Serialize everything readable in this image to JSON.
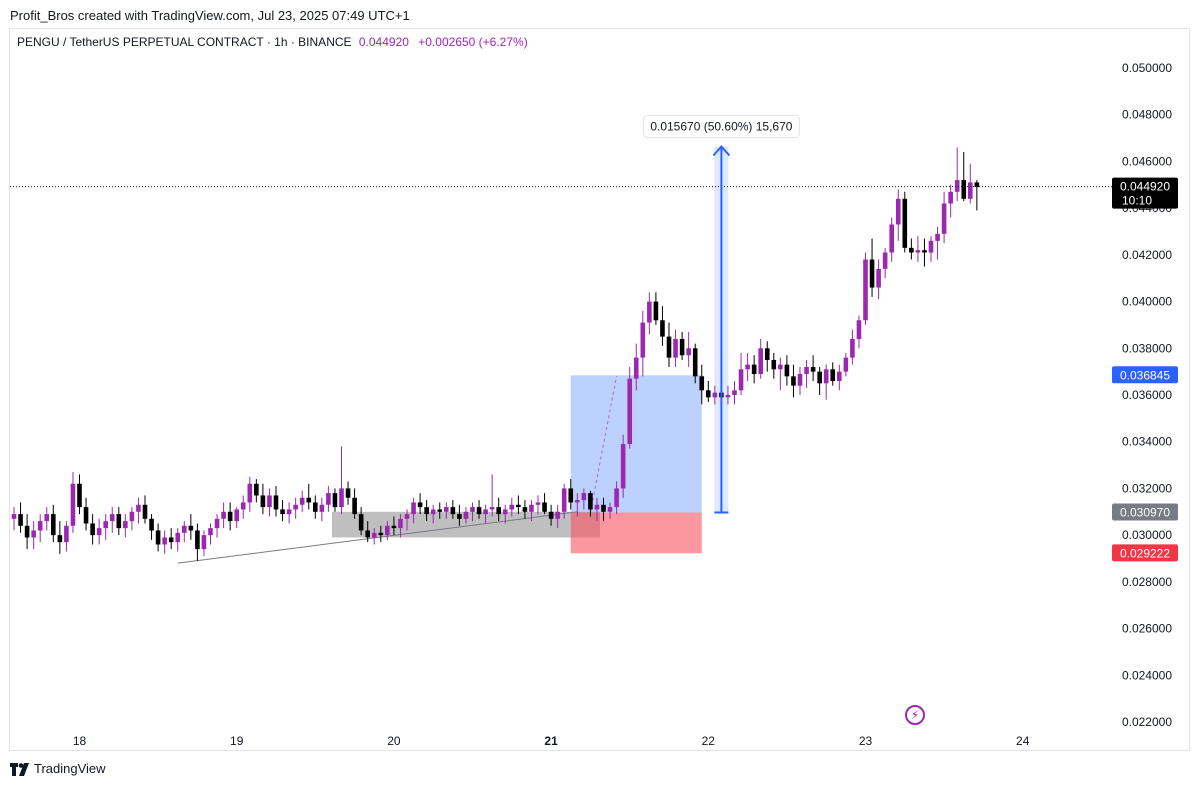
{
  "header": {
    "credit": "Profit_Bros created with TradingView.com, Jul 23, 2025 07:49 UTC+1"
  },
  "legend": {
    "symbol": "PENGU / TetherUS PERPETUAL CONTRACT · 1h · BINANCE",
    "price": "0.044920",
    "change": "+0.002650 (+6.27%)"
  },
  "footer": {
    "brand": "TradingView"
  },
  "icons": {
    "bolt": "lightning-icon",
    "logo": "tradingview-logo-icon"
  },
  "colors": {
    "up": "#9c27b0",
    "down": "#000000",
    "entry_badge": "#2962ff",
    "stop_badge": "#f23645",
    "target_badge": "#787b86",
    "last_badge": "#000000"
  },
  "chart_data": {
    "type": "candlestick",
    "ylim": [
      0.022,
      0.0515
    ],
    "y_ticks": [
      "0.050000",
      "0.048000",
      "0.046000",
      "0.044000",
      "0.042000",
      "0.040000",
      "0.038000",
      "0.036000",
      "0.034000",
      "0.032000",
      "0.030000",
      "0.028000",
      "0.026000",
      "0.024000",
      "0.022000"
    ],
    "x_ticks": [
      "18",
      "19",
      "20",
      "21",
      "22",
      "23",
      "24"
    ],
    "x_ticks_bold": [
      "21"
    ],
    "candles": [
      [
        0.0307,
        0.0312,
        0.0302,
        0.0309
      ],
      [
        0.0309,
        0.0314,
        0.0301,
        0.0304
      ],
      [
        0.0304,
        0.0309,
        0.0294,
        0.0299
      ],
      [
        0.0299,
        0.0306,
        0.0294,
        0.0302
      ],
      [
        0.0302,
        0.0309,
        0.0297,
        0.0306
      ],
      [
        0.0306,
        0.0312,
        0.0302,
        0.0309
      ],
      [
        0.0309,
        0.0313,
        0.0297,
        0.03
      ],
      [
        0.03,
        0.0306,
        0.0292,
        0.0297
      ],
      [
        0.0297,
        0.0306,
        0.0293,
        0.0304
      ],
      [
        0.0304,
        0.0327,
        0.0301,
        0.0322
      ],
      [
        0.0322,
        0.0326,
        0.0309,
        0.0312
      ],
      [
        0.0312,
        0.0316,
        0.0302,
        0.0305
      ],
      [
        0.0305,
        0.0309,
        0.0296,
        0.03
      ],
      [
        0.03,
        0.0307,
        0.0296,
        0.0303
      ],
      [
        0.0303,
        0.0309,
        0.0298,
        0.0306
      ],
      [
        0.0306,
        0.0312,
        0.0301,
        0.0309
      ],
      [
        0.0309,
        0.0312,
        0.03,
        0.0303
      ],
      [
        0.0303,
        0.0309,
        0.0299,
        0.0306
      ],
      [
        0.0306,
        0.0312,
        0.0302,
        0.031
      ],
      [
        0.031,
        0.0316,
        0.0305,
        0.0313
      ],
      [
        0.0313,
        0.0317,
        0.0305,
        0.0307
      ],
      [
        0.0307,
        0.0309,
        0.0298,
        0.0302
      ],
      [
        0.0302,
        0.0305,
        0.0293,
        0.0296
      ],
      [
        0.0296,
        0.0302,
        0.0292,
        0.0299
      ],
      [
        0.0299,
        0.0303,
        0.0294,
        0.0297
      ],
      [
        0.0297,
        0.0303,
        0.0293,
        0.0301
      ],
      [
        0.0301,
        0.0306,
        0.0297,
        0.0304
      ],
      [
        0.0304,
        0.0309,
        0.0298,
        0.0302
      ],
      [
        0.0302,
        0.0305,
        0.0289,
        0.0294
      ],
      [
        0.0294,
        0.0302,
        0.0291,
        0.03
      ],
      [
        0.03,
        0.0305,
        0.0296,
        0.0303
      ],
      [
        0.0303,
        0.0309,
        0.0299,
        0.0307
      ],
      [
        0.0307,
        0.0314,
        0.0303,
        0.031
      ],
      [
        0.031,
        0.0314,
        0.0302,
        0.0306
      ],
      [
        0.0306,
        0.0312,
        0.0303,
        0.0311
      ],
      [
        0.0311,
        0.0317,
        0.0307,
        0.0314
      ],
      [
        0.0314,
        0.0325,
        0.031,
        0.0322
      ],
      [
        0.0322,
        0.0324,
        0.0314,
        0.0317
      ],
      [
        0.0317,
        0.0322,
        0.0309,
        0.0312
      ],
      [
        0.0312,
        0.032,
        0.0308,
        0.0317
      ],
      [
        0.0317,
        0.0321,
        0.0308,
        0.0311
      ],
      [
        0.0311,
        0.0315,
        0.0306,
        0.0309
      ],
      [
        0.0309,
        0.0314,
        0.0305,
        0.0311
      ],
      [
        0.0311,
        0.0316,
        0.0307,
        0.0313
      ],
      [
        0.0313,
        0.0319,
        0.031,
        0.0316
      ],
      [
        0.0316,
        0.0322,
        0.0311,
        0.0314
      ],
      [
        0.0314,
        0.0317,
        0.0307,
        0.031
      ],
      [
        0.031,
        0.0316,
        0.0306,
        0.0313
      ],
      [
        0.0313,
        0.0321,
        0.031,
        0.0318
      ],
      [
        0.0318,
        0.032,
        0.031,
        0.0312
      ],
      [
        0.0312,
        0.0338,
        0.0309,
        0.032
      ],
      [
        0.032,
        0.0323,
        0.0313,
        0.0316
      ],
      [
        0.0316,
        0.032,
        0.0307,
        0.0309
      ],
      [
        0.0309,
        0.0312,
        0.03,
        0.0302
      ],
      [
        0.0302,
        0.0306,
        0.0297,
        0.0299
      ],
      [
        0.0299,
        0.0303,
        0.0296,
        0.0301
      ],
      [
        0.0301,
        0.0304,
        0.0297,
        0.03
      ],
      [
        0.03,
        0.0306,
        0.0298,
        0.0304
      ],
      [
        0.0304,
        0.0308,
        0.03,
        0.0303
      ],
      [
        0.0303,
        0.0309,
        0.0299,
        0.0307
      ],
      [
        0.0307,
        0.0311,
        0.0302,
        0.0309
      ],
      [
        0.0309,
        0.0316,
        0.0305,
        0.0314
      ],
      [
        0.0314,
        0.0318,
        0.0309,
        0.0312
      ],
      [
        0.0312,
        0.0315,
        0.0306,
        0.0309
      ],
      [
        0.0309,
        0.0313,
        0.0305,
        0.0311
      ],
      [
        0.0311,
        0.0314,
        0.0307,
        0.031
      ],
      [
        0.031,
        0.0314,
        0.0307,
        0.0312
      ],
      [
        0.0312,
        0.0315,
        0.0307,
        0.0309
      ],
      [
        0.0309,
        0.0313,
        0.0304,
        0.0307
      ],
      [
        0.0307,
        0.0312,
        0.0305,
        0.031
      ],
      [
        0.031,
        0.0314,
        0.0306,
        0.0312
      ],
      [
        0.0312,
        0.0315,
        0.0307,
        0.0309
      ],
      [
        0.0309,
        0.0313,
        0.0305,
        0.0311
      ],
      [
        0.0311,
        0.0326,
        0.0308,
        0.0312
      ],
      [
        0.0312,
        0.0316,
        0.0306,
        0.0309
      ],
      [
        0.0309,
        0.0313,
        0.0305,
        0.0311
      ],
      [
        0.0311,
        0.0316,
        0.0308,
        0.0313
      ],
      [
        0.0313,
        0.0317,
        0.0309,
        0.0312
      ],
      [
        0.0312,
        0.0315,
        0.0307,
        0.031
      ],
      [
        0.031,
        0.0315,
        0.0306,
        0.0313
      ],
      [
        0.0313,
        0.0317,
        0.0309,
        0.0314
      ],
      [
        0.0314,
        0.0318,
        0.0309,
        0.031
      ],
      [
        0.031,
        0.0313,
        0.0304,
        0.0307
      ],
      [
        0.0307,
        0.0313,
        0.0303,
        0.031
      ],
      [
        0.031,
        0.0322,
        0.0307,
        0.032
      ],
      [
        0.032,
        0.0324,
        0.0311,
        0.0314
      ],
      [
        0.0314,
        0.0318,
        0.0308,
        0.0315
      ],
      [
        0.0315,
        0.032,
        0.0311,
        0.0318
      ],
      [
        0.0318,
        0.0319,
        0.0308,
        0.0311
      ],
      [
        0.0311,
        0.0316,
        0.0306,
        0.0313
      ],
      [
        0.0313,
        0.0316,
        0.0306,
        0.031
      ],
      [
        0.031,
        0.0314,
        0.0307,
        0.0312
      ],
      [
        0.0312,
        0.0323,
        0.0309,
        0.032
      ],
      [
        0.032,
        0.0343,
        0.0316,
        0.0339
      ],
      [
        0.0339,
        0.0372,
        0.0337,
        0.0367
      ],
      [
        0.0367,
        0.0382,
        0.0362,
        0.0376
      ],
      [
        0.0376,
        0.0396,
        0.0368,
        0.0391
      ],
      [
        0.0391,
        0.0404,
        0.0386,
        0.04
      ],
      [
        0.04,
        0.0404,
        0.039,
        0.0392
      ],
      [
        0.0392,
        0.0398,
        0.0381,
        0.0385
      ],
      [
        0.0385,
        0.0391,
        0.0372,
        0.0376
      ],
      [
        0.0376,
        0.0388,
        0.0372,
        0.0384
      ],
      [
        0.0384,
        0.0387,
        0.0375,
        0.0377
      ],
      [
        0.0377,
        0.0387,
        0.0372,
        0.038
      ],
      [
        0.038,
        0.0382,
        0.0365,
        0.0368
      ],
      [
        0.0368,
        0.0373,
        0.0356,
        0.0362
      ],
      [
        0.0362,
        0.0366,
        0.0357,
        0.0359
      ],
      [
        0.0359,
        0.0364,
        0.0356,
        0.0361
      ],
      [
        0.0361,
        0.0364,
        0.0356,
        0.0359
      ],
      [
        0.0359,
        0.0364,
        0.0356,
        0.036
      ],
      [
        0.036,
        0.0366,
        0.0356,
        0.0362
      ],
      [
        0.0362,
        0.0378,
        0.036,
        0.0371
      ],
      [
        0.0371,
        0.0378,
        0.0366,
        0.0373
      ],
      [
        0.0373,
        0.0377,
        0.0365,
        0.0369
      ],
      [
        0.0369,
        0.0384,
        0.0367,
        0.038
      ],
      [
        0.038,
        0.0383,
        0.037,
        0.0375
      ],
      [
        0.0375,
        0.0378,
        0.0367,
        0.0371
      ],
      [
        0.0371,
        0.0376,
        0.0362,
        0.0373
      ],
      [
        0.0373,
        0.0377,
        0.0364,
        0.0368
      ],
      [
        0.0368,
        0.0373,
        0.0359,
        0.0364
      ],
      [
        0.0364,
        0.0372,
        0.036,
        0.0369
      ],
      [
        0.0369,
        0.0375,
        0.0363,
        0.0372
      ],
      [
        0.0372,
        0.0377,
        0.0366,
        0.037
      ],
      [
        0.037,
        0.0372,
        0.036,
        0.0365
      ],
      [
        0.0365,
        0.0373,
        0.0358,
        0.0371
      ],
      [
        0.0371,
        0.0374,
        0.0364,
        0.0366
      ],
      [
        0.0366,
        0.0373,
        0.0362,
        0.037
      ],
      [
        0.037,
        0.0378,
        0.0368,
        0.0376
      ],
      [
        0.0376,
        0.0388,
        0.0373,
        0.0384
      ],
      [
        0.0384,
        0.0394,
        0.038,
        0.0392
      ],
      [
        0.0392,
        0.0421,
        0.039,
        0.0418
      ],
      [
        0.0418,
        0.0427,
        0.0402,
        0.0406
      ],
      [
        0.0406,
        0.0418,
        0.0401,
        0.0414
      ],
      [
        0.0414,
        0.0423,
        0.041,
        0.0421
      ],
      [
        0.0421,
        0.0436,
        0.0417,
        0.0433
      ],
      [
        0.0433,
        0.0448,
        0.0426,
        0.0444
      ],
      [
        0.0444,
        0.0447,
        0.0421,
        0.0423
      ],
      [
        0.0423,
        0.0427,
        0.0418,
        0.0421
      ],
      [
        0.0421,
        0.0428,
        0.0417,
        0.0422
      ],
      [
        0.0422,
        0.0427,
        0.0415,
        0.0421
      ],
      [
        0.0421,
        0.0428,
        0.0417,
        0.0426
      ],
      [
        0.0426,
        0.0432,
        0.0418,
        0.0429
      ],
      [
        0.0429,
        0.0447,
        0.0425,
        0.0442
      ],
      [
        0.0442,
        0.045,
        0.0436,
        0.0447
      ],
      [
        0.0447,
        0.0466,
        0.0443,
        0.0452
      ],
      [
        0.0452,
        0.0464,
        0.0443,
        0.0444
      ],
      [
        0.0444,
        0.0459,
        0.0442,
        0.0451
      ],
      [
        0.0451,
        0.0452,
        0.0439,
        0.0449
      ]
    ],
    "drawings": {
      "consolidation_box": {
        "price_top": 0.031,
        "price_bottom": 0.0299
      },
      "trend_line": {
        "price_start": 0.0288,
        "price_end": 0.031
      },
      "long_position": {
        "entry": "0.030970",
        "target": "0.036845",
        "stop": "0.029222"
      },
      "measure": {
        "from": 0.03097,
        "to": 0.04664,
        "label": "0.015670 (50.60%) 15,670"
      }
    },
    "last_price": {
      "value": "0.044920",
      "countdown": "10:10"
    }
  }
}
